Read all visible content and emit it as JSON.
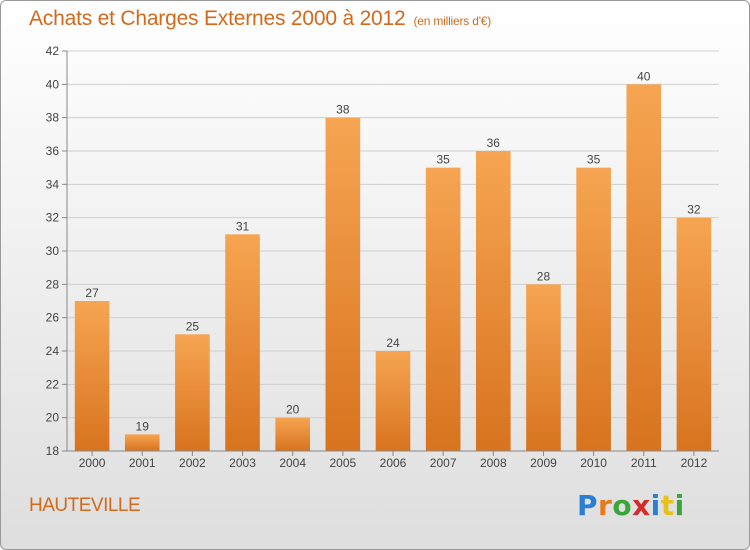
{
  "title": "Achats et Charges Externes 2000 à 2012",
  "subtitle": "(en milliers d'€)",
  "commune": "HAUTEVILLE",
  "logo": {
    "letters": [
      "P",
      "r",
      "o",
      "x",
      "i",
      "t",
      "i"
    ],
    "colors": [
      "#2a7fd4",
      "#e8791c",
      "#3aa63a",
      "#d42a2a",
      "#2a7fd4",
      "#e8c21c",
      "#3aa63a"
    ]
  },
  "colors": {
    "bar_light": "#f6a552",
    "bar_dark": "#d8731f",
    "accent": "#d4691c"
  },
  "chart_data": {
    "type": "bar",
    "categories": [
      "2000",
      "2001",
      "2002",
      "2003",
      "2004",
      "2005",
      "2006",
      "2007",
      "2008",
      "2009",
      "2010",
      "2011",
      "2012"
    ],
    "values": [
      27,
      19,
      25,
      31,
      20,
      38,
      24,
      35,
      36,
      28,
      35,
      40,
      32
    ],
    "data_labels": [
      "27",
      "19",
      "25",
      "31",
      "20",
      "38",
      "24",
      "35",
      "36",
      "28",
      "35",
      "40",
      "32"
    ],
    "title": "Achats et Charges Externes 2000 à 2012",
    "subtitle": "(en milliers d'€)",
    "ylim": [
      18,
      42
    ],
    "yticks": [
      18,
      20,
      22,
      24,
      26,
      28,
      30,
      32,
      34,
      36,
      38,
      40,
      42
    ],
    "grid": true
  }
}
